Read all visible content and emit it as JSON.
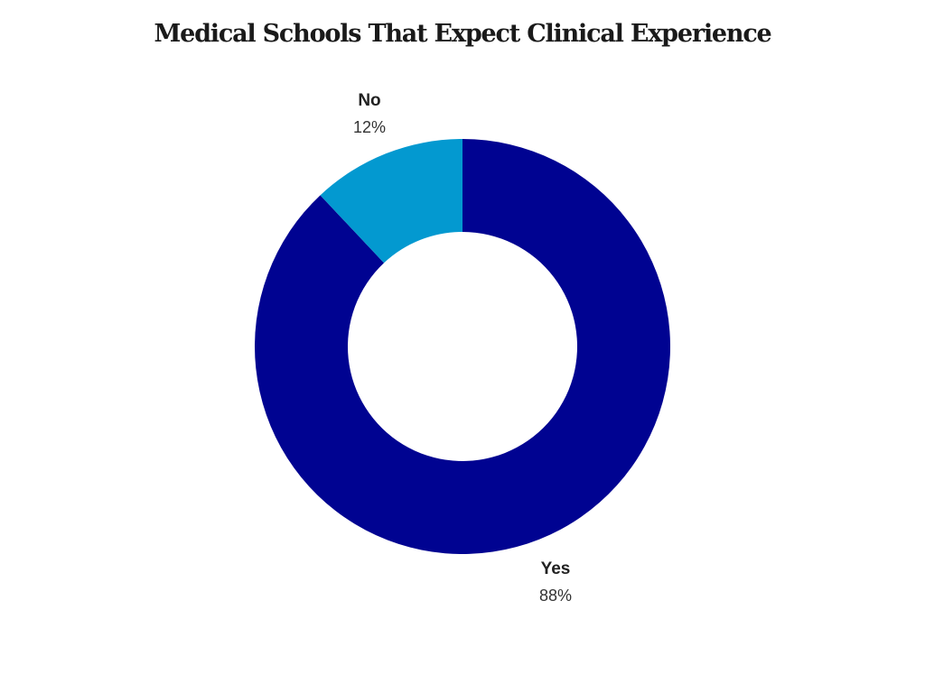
{
  "chart_data": {
    "type": "pie",
    "title": "Medical Schools That Expect Clinical Experience",
    "donut": true,
    "slices": [
      {
        "label": "Yes",
        "value": 88,
        "value_label": "88%",
        "color": "#000391"
      },
      {
        "label": "No",
        "value": 12,
        "value_label": "12%",
        "color": "#0399d0"
      }
    ],
    "start_angle_deg": 0,
    "direction": "clockwise",
    "legend": "none"
  }
}
